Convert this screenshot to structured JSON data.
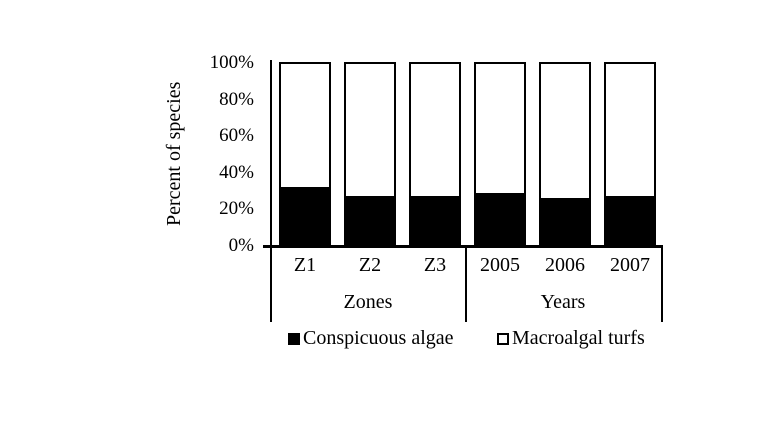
{
  "chart_data": {
    "type": "bar",
    "stacked": true,
    "percent_stacked": true,
    "title": "",
    "ylabel": "Percent of species",
    "xlabel": "",
    "categories": [
      "Z1",
      "Z2",
      "Z3",
      "2005",
      "2006",
      "2007"
    ],
    "groups": [
      {
        "label": "Zones",
        "categories": [
          "Z1",
          "Z2",
          "Z3"
        ]
      },
      {
        "label": "Years",
        "categories": [
          "2005",
          "2006",
          "2007"
        ]
      }
    ],
    "series": [
      {
        "name": "Conspicuous algae",
        "color": "#000000",
        "values": [
          31,
          26,
          26,
          28,
          25,
          26
        ]
      },
      {
        "name": "Macroalgal turfs",
        "color": "#ffffff",
        "values": [
          69,
          74,
          74,
          72,
          75,
          74
        ]
      }
    ],
    "ylim": [
      0,
      100
    ],
    "yticks": [
      "0%",
      "20%",
      "40%",
      "60%",
      "80%",
      "100%"
    ],
    "grid": false,
    "legend_position": "bottom"
  },
  "colors": {
    "foreground": "#000000",
    "background": "#ffffff"
  }
}
